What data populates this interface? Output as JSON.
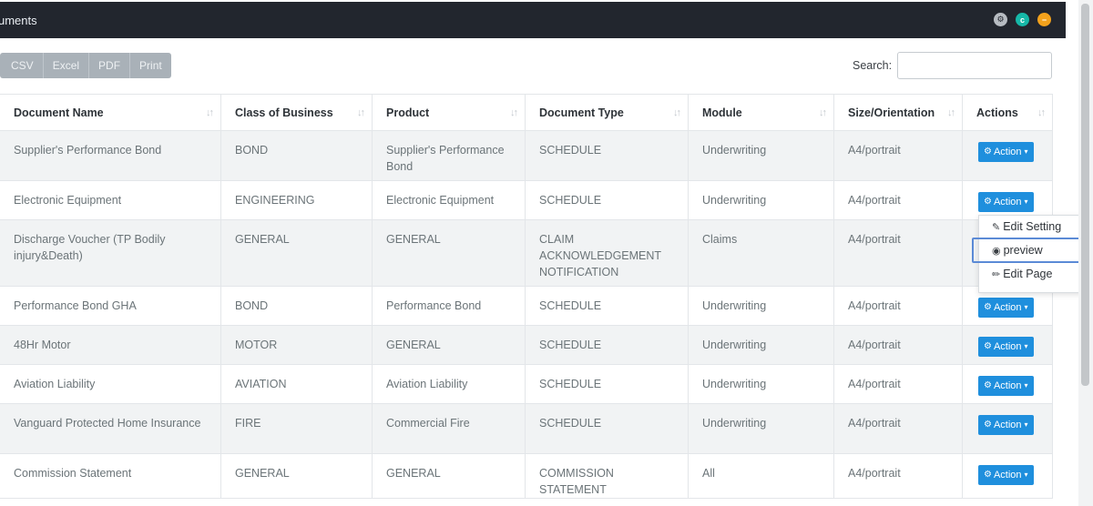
{
  "panel": {
    "title": "uments",
    "header_icons": [
      "settings-icon",
      "refresh-icon",
      "collapse-icon"
    ],
    "header_icon_glyphs": [
      "⚙",
      "c",
      "−"
    ]
  },
  "toolbar": {
    "buttons": [
      "CSV",
      "Excel",
      "PDF",
      "Print"
    ]
  },
  "search": {
    "label": "Search:",
    "value": "",
    "placeholder": ""
  },
  "table": {
    "columns": [
      "Document Name",
      "Class of Business",
      "Product",
      "Document Type",
      "Module",
      "Size/Orientation",
      "Actions"
    ],
    "sort_glyph": "↓↑",
    "action_label": "Action",
    "rows": [
      {
        "name": "Supplier's Performance Bond",
        "class": "BOND",
        "product": "Supplier's Performance Bond",
        "type": "SCHEDULE",
        "module": "Underwriting",
        "size": "A4/portrait"
      },
      {
        "name": "Electronic Equipment",
        "class": "ENGINEERING",
        "product": "Electronic Equipment",
        "type": "SCHEDULE",
        "module": "Underwriting",
        "size": "A4/portrait"
      },
      {
        "name": "Discharge Voucher (TP Bodily injury&Death)",
        "class": "GENERAL",
        "product": "GENERAL",
        "type": "CLAIM ACKNOWLEDGEMENT NOTIFICATION",
        "module": "Claims",
        "size": "A4/portrait"
      },
      {
        "name": "Performance Bond GHA",
        "class": "BOND",
        "product": "Performance Bond",
        "type": "SCHEDULE",
        "module": "Underwriting",
        "size": "A4/portrait"
      },
      {
        "name": "48Hr Motor",
        "class": "MOTOR",
        "product": "GENERAL",
        "type": "SCHEDULE",
        "module": "Underwriting",
        "size": "A4/portrait"
      },
      {
        "name": "Aviation Liability",
        "class": "AVIATION",
        "product": "Aviation Liability",
        "type": "SCHEDULE",
        "module": "Underwriting",
        "size": "A4/portrait"
      },
      {
        "name": "Vanguard Protected Home Insurance",
        "class": "FIRE",
        "product": "Commercial Fire",
        "type": "SCHEDULE",
        "module": "Underwriting",
        "size": "A4/portrait"
      },
      {
        "name": "Commission Statement",
        "class": "GENERAL",
        "product": "GENERAL",
        "type": "COMMISSION STATEMENT",
        "module": "All",
        "size": "A4/portrait"
      }
    ]
  },
  "dropdown": {
    "items": [
      {
        "label": "Edit Setting",
        "icon": "edit-icon",
        "glyph": "✎"
      },
      {
        "label": "preview",
        "icon": "eye-icon",
        "glyph": "◉"
      },
      {
        "label": "Edit Page",
        "icon": "pencil-icon",
        "glyph": "✏"
      }
    ],
    "active_index": 1
  },
  "colors": {
    "header_bg": "#22262e",
    "action_blue": "#1f8fdd",
    "focus_outline": "#5b8ad6"
  }
}
